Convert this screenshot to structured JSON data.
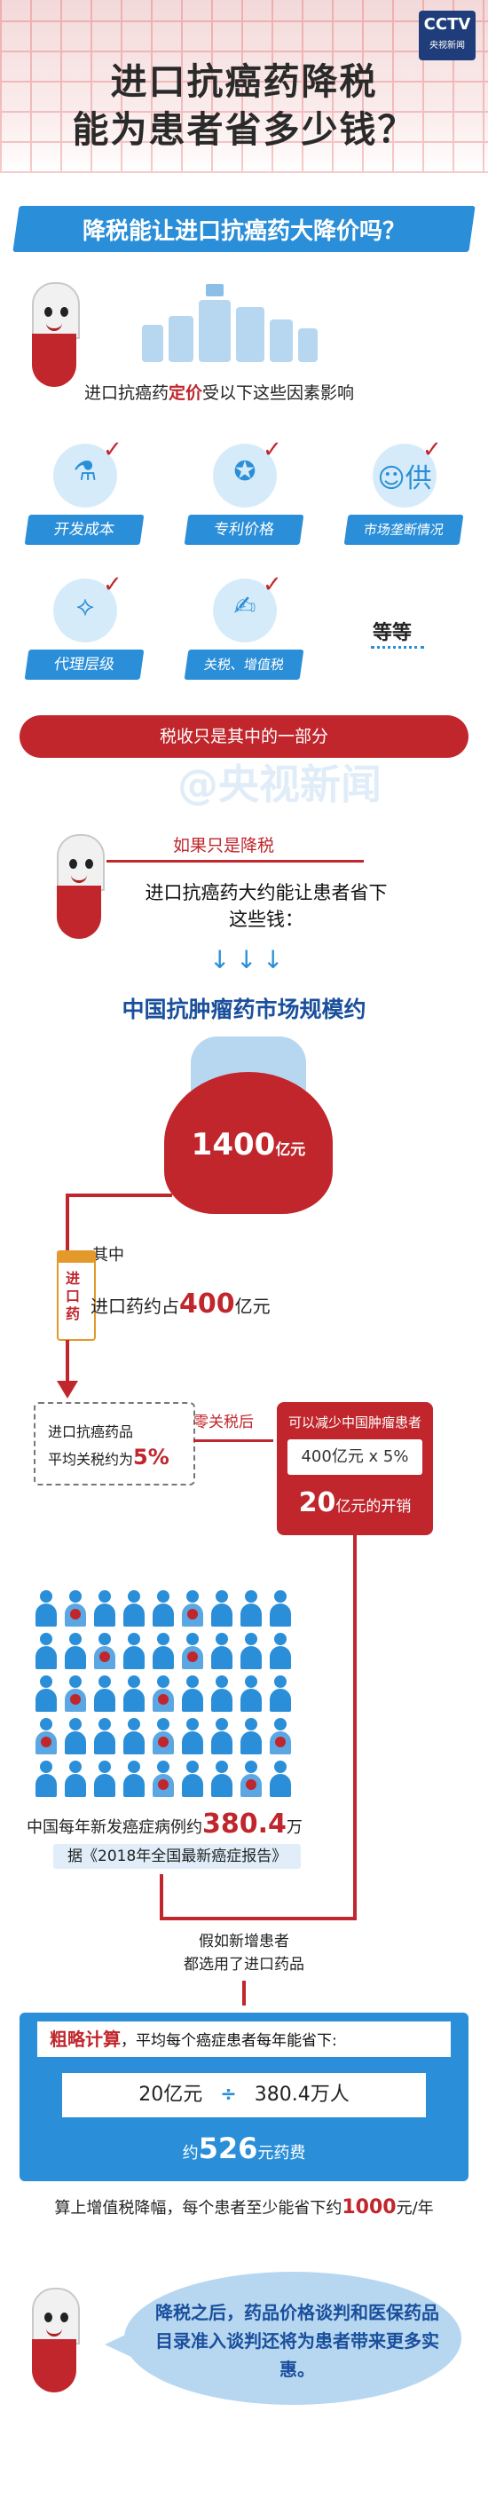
{
  "header": {
    "logo_text": "CCTV",
    "logo_sub": "央视新闻",
    "title_line1": "进口抗癌药降税",
    "title_line2": "能为患者省多少钱？"
  },
  "section_banner": "降税能让进口抗癌药大降价吗？",
  "factors": {
    "intro_before": "进口抗癌药",
    "intro_highlight": "定价",
    "intro_after": "受以下这些因素影响",
    "items": [
      {
        "label": "开发成本",
        "icon": "microscope-icon",
        "glyph": "⚗"
      },
      {
        "label": "专利价格",
        "icon": "medal-icon",
        "glyph": "✪"
      },
      {
        "label": "市场垄断情况",
        "icon": "supplier-icon",
        "glyph": "☺供"
      },
      {
        "label": "代理层级",
        "icon": "hierarchy-icon",
        "glyph": "⟡"
      },
      {
        "label": "关税、增值税",
        "icon": "handshake-icon",
        "glyph": "✍"
      }
    ],
    "etc": "等等",
    "tax_note": "税收只是其中的一部分"
  },
  "watermark": "@央视新闻",
  "savings": {
    "tab_label": "如果只是降税",
    "line1": "进口抗癌药大约能让患者省下",
    "line2": "这些钱："
  },
  "market": {
    "title": "中国抗肿瘤药市场规模约",
    "value": "1400",
    "unit": "亿元"
  },
  "import": {
    "qizhong": "其中",
    "box_text": "进口药",
    "share_prefix": "进口药约占",
    "share_value": "400",
    "share_unit": "亿元"
  },
  "tariff": {
    "line1": "进口抗癌药品",
    "line2_prefix": "平均关税约为",
    "pct": "5%",
    "zero_tax": "零关税后"
  },
  "reduction": {
    "line1": "可以减少中国肿瘤患者",
    "calc": "400亿元 x 5%",
    "result_value": "20",
    "result_unit": "亿元的开销"
  },
  "patients": {
    "prefix": "中国每年新发癌症病例约",
    "value": "380.4",
    "unit": "万",
    "report": "据《2018年全国最新癌症报告》"
  },
  "assumption": {
    "line1": "假如新增患者",
    "line2": "都选用了进口药品"
  },
  "estimate": {
    "head_highlight": "粗略计算",
    "head_rest": "，平均每个癌症患者每年能省下:",
    "left": "20亿元",
    "operator": "÷",
    "right": "380.4万人",
    "result_prefix": "约",
    "result_value": "526",
    "result_unit": "元药费"
  },
  "final": {
    "prefix": "算上增值税降幅，每个患者至少能省下约",
    "value": "1000",
    "unit": "元/年"
  },
  "closing": "降税之后，药品价格谈判和医保药品目录准入谈判还将为患者带来更多实惠。",
  "colors": {
    "brand_red": "#c0262c",
    "brand_blue": "#2a8fd8",
    "light_blue": "#b7d7f1"
  }
}
